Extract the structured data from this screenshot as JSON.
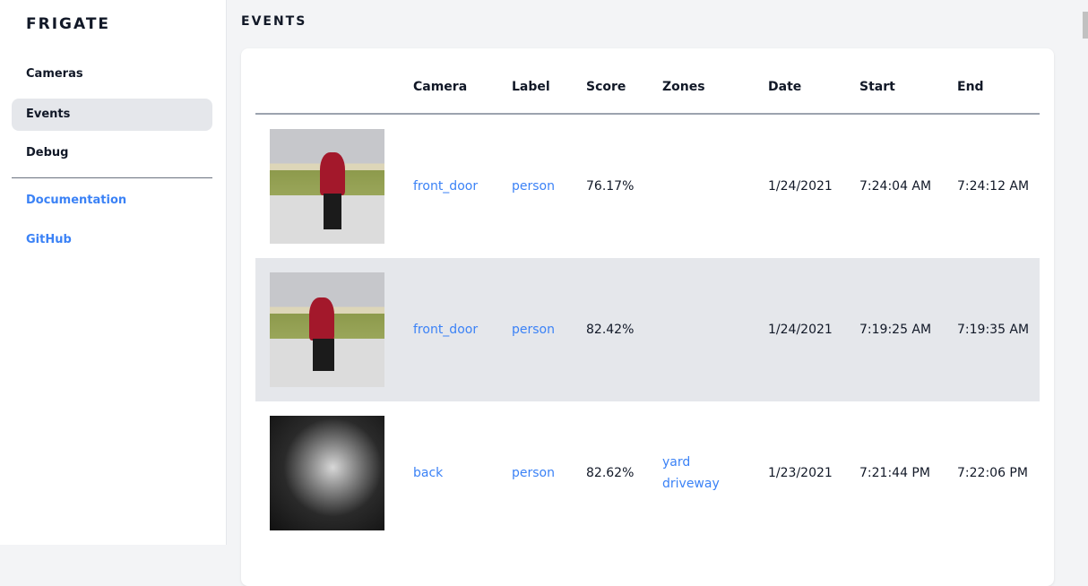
{
  "sidebar": {
    "brand": "FRIGATE",
    "items": [
      {
        "label": "Cameras"
      },
      {
        "label": "Events",
        "active": true
      },
      {
        "label": "Debug"
      }
    ],
    "links": [
      {
        "label": "Documentation"
      },
      {
        "label": "GitHub"
      }
    ]
  },
  "page": {
    "title": "EVENTS"
  },
  "table": {
    "headers": {
      "camera": "Camera",
      "label": "Label",
      "score": "Score",
      "zones": "Zones",
      "date": "Date",
      "start": "Start",
      "end": "End"
    },
    "rows": [
      {
        "camera": "front_door",
        "label": "person",
        "score": "76.17%",
        "zones": [
          "",
          ""
        ],
        "date": "1/24/2021",
        "start": "7:24:04 AM",
        "end": "7:24:12 AM"
      },
      {
        "camera": "front_door",
        "label": "person",
        "score": "82.42%",
        "zones": [
          "",
          ""
        ],
        "date": "1/24/2021",
        "start": "7:19:25 AM",
        "end": "7:19:35 AM"
      },
      {
        "camera": "back",
        "label": "person",
        "score": "82.62%",
        "zones": [
          "yard",
          "driveway"
        ],
        "date": "1/23/2021",
        "start": "7:21:44 PM",
        "end": "7:22:06 PM"
      }
    ]
  },
  "colors": {
    "link": "#3b82f6",
    "active_bg": "#e5e7eb",
    "row_alt": "#e5e7eb"
  }
}
